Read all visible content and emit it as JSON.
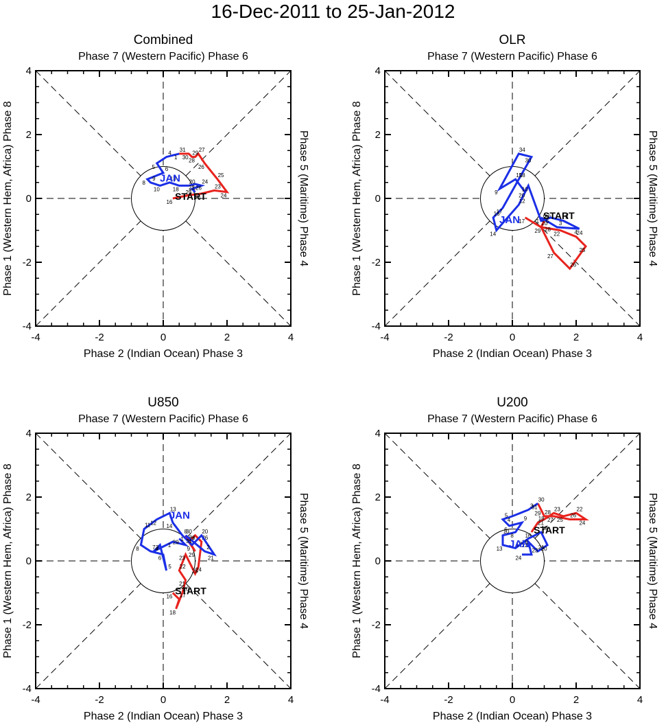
{
  "figure_title": "16-Dec-2011 to 25-Jan-2012",
  "colors": {
    "first_period": "#e8231e",
    "second_period": "#1b2fe6",
    "axis": "#000000"
  },
  "chart_data": [
    {
      "type": "line",
      "title": "Combined",
      "top_label": "Phase 7 (Western Pacific) Phase 6",
      "bottom_label": "Phase 2 (Indian Ocean) Phase 3",
      "left_label": "Phase 1 (Western Hem, Africa) Phase 8",
      "right_label": "Phase 5 (Maritime) Phase 4",
      "xlim": [
        -4,
        4
      ],
      "ylim": [
        -4,
        4
      ],
      "xticks": [
        "-4",
        "-2",
        "0",
        "2",
        "4"
      ],
      "yticks": [
        "-4",
        "-2",
        "0",
        "2",
        "4"
      ],
      "start_label": "START",
      "month_label": "JAN",
      "unit_circle_radius": 1,
      "start_point": [
        0.3,
        0.0
      ],
      "month_point": [
        0.0,
        0.7
      ],
      "series": [
        {
          "name": "December",
          "color": "#e8231e",
          "x": [
            0.3,
            0.8,
            1.2,
            1.6,
            2.0,
            1.7,
            1.3,
            1.1,
            1.0,
            0.9,
            0.8,
            0.5
          ],
          "y": [
            0.0,
            0.1,
            0.15,
            0.25,
            0.2,
            0.6,
            1.1,
            1.4,
            1.3,
            1.3,
            1.4,
            1.4
          ],
          "labels": [
            "16",
            "17",
            "21",
            "23",
            "24",
            "25",
            "26",
            "27",
            "28",
            "29",
            "30",
            "31"
          ]
        },
        {
          "name": "January",
          "color": "#1b2fe6",
          "x": [
            0.5,
            0.1,
            -0.2,
            0.0,
            -0.5,
            -0.4,
            -0.1,
            0.2,
            0.5,
            0.8,
            1.0,
            1.2,
            0.9,
            1.0
          ],
          "y": [
            1.4,
            1.3,
            1.1,
            0.8,
            0.6,
            0.5,
            0.4,
            0.5,
            0.4,
            0.4,
            0.45,
            0.4,
            0.3,
            0.2
          ],
          "labels": [
            "1",
            "4",
            "5",
            "6",
            "8",
            "9",
            "10",
            "13",
            "18",
            "20",
            "22",
            "24",
            "25",
            "26"
          ]
        }
      ]
    },
    {
      "type": "line",
      "title": "OLR",
      "top_label": "Phase 7 (Western Pacific) Phase 6",
      "bottom_label": "Phase 2 (Indian Ocean) Phase 3",
      "left_label": "Phase 1 (Western Hem, Africa) Phase 8",
      "right_label": "Phase 5 (Maritime) Phase 4",
      "xlim": [
        -4,
        4
      ],
      "ylim": [
        -4,
        4
      ],
      "xticks": [
        "-4",
        "-2",
        "0",
        "2",
        "4"
      ],
      "yticks": [
        "-4",
        "-2",
        "0",
        "2",
        "4"
      ],
      "start_label": "START",
      "month_label": "JAN",
      "unit_circle_radius": 1,
      "start_point": [
        0.9,
        -0.6
      ],
      "month_point": [
        -0.3,
        -0.6
      ],
      "series": [
        {
          "name": "December",
          "color": "#e8231e",
          "x": [
            0.4,
            0.9,
            1.5,
            2.0,
            2.3,
            1.8,
            1.3,
            1.0,
            0.9,
            1.0
          ],
          "y": [
            -0.6,
            -0.9,
            -1.0,
            -1.2,
            -1.5,
            -2.2,
            -1.7,
            -1.1,
            -0.9,
            -0.7
          ],
          "labels": [
            "17",
            "20",
            "22",
            "24",
            "25",
            "26",
            "27",
            "28",
            "29",
            "30"
          ]
        },
        {
          "name": "January",
          "color": "#1b2fe6",
          "x": [
            0.9,
            1.4,
            2.1,
            1.6,
            1.2,
            0.9,
            0.5,
            0.2,
            -0.5,
            -0.6,
            -0.3,
            0.2,
            0.6,
            0.2,
            -0.4,
            0.1,
            0.4
          ],
          "y": [
            -0.6,
            -0.9,
            -0.95,
            -0.7,
            -0.6,
            -0.7,
            0.4,
            -0.2,
            -1.0,
            -0.6,
            -0.3,
            0.6,
            1.3,
            1.4,
            0.3,
            0.6,
            0.2
          ],
          "labels": [
            "1",
            "3",
            "4",
            "5",
            "6",
            "9",
            "10",
            "12",
            "14",
            "16",
            "17",
            "18",
            "30",
            "34",
            "9",
            "15",
            "20"
          ]
        }
      ]
    },
    {
      "type": "line",
      "title": "U850",
      "top_label": "Phase 7 (Western Pacific) Phase 6",
      "bottom_label": "Phase 2 (Indian Ocean) Phase 3",
      "left_label": "Phase 1 (Western Hem, Africa) Phase 8",
      "right_label": "Phase 5 (Maritime) Phase 4",
      "xlim": [
        -4,
        4
      ],
      "ylim": [
        -4,
        4
      ],
      "xticks": [
        "-4",
        "-2",
        "0",
        "2",
        "4"
      ],
      "yticks": [
        "-4",
        "-2",
        "0",
        "2",
        "4"
      ],
      "start_label": "START",
      "month_label": "JAN",
      "unit_circle_radius": 1,
      "start_point": [
        0.3,
        -1.0
      ],
      "month_point": [
        0.3,
        1.5
      ],
      "series": [
        {
          "name": "December",
          "color": "#e8231e",
          "x": [
            0.3,
            0.5,
            0.4,
            0.6,
            0.7,
            0.5,
            0.7,
            1.0,
            1.1,
            1.2,
            1.0,
            0.8,
            1.0,
            0.7
          ],
          "y": [
            -1.0,
            -1.2,
            -1.5,
            -1.0,
            -0.6,
            -0.3,
            0.2,
            -0.4,
            -0.2,
            0.6,
            0.8,
            0.6,
            0.3,
            0.8
          ],
          "labels": [
            "16",
            "17",
            "18",
            "20",
            "21",
            "22",
            "23",
            "24",
            "25",
            "26",
            "27",
            "28",
            "29",
            "30"
          ]
        },
        {
          "name": "January",
          "color": "#1b2fe6",
          "x": [
            0.7,
            1.3,
            1.6,
            1.2,
            0.9,
            0.6,
            0.3,
            0.2,
            -0.2,
            -0.6,
            -0.7,
            -0.4,
            0.0,
            0.1,
            -0.1,
            -0.3,
            0.3,
            0.7,
            0.5
          ],
          "y": [
            0.8,
            0.3,
            0.2,
            0.8,
            0.5,
            0.8,
            1.2,
            1.5,
            1.3,
            1.0,
            0.5,
            0.3,
            0.2,
            -0.3,
            0.5,
            0.3,
            0.6,
            0.5,
            0.7
          ],
          "labels": [
            "1",
            "2",
            "21",
            "20",
            "9",
            "8",
            "14",
            "13",
            "12",
            "11",
            "8",
            "7",
            "6",
            "5",
            "4",
            "3",
            "1",
            "31",
            "29"
          ]
        }
      ]
    },
    {
      "type": "line",
      "title": "U200",
      "top_label": "Phase 7 (Western Pacific) Phase 6",
      "bottom_label": "Phase 2 (Indian Ocean) Phase 3",
      "left_label": "Phase 1 (Western Hem, Africa) Phase 8",
      "right_label": "Phase 5 (Maritime) Phase 4",
      "xlim": [
        -4,
        4
      ],
      "ylim": [
        -4,
        4
      ],
      "xticks": [
        "-4",
        "-2",
        "0",
        "2",
        "4"
      ],
      "yticks": [
        "-4",
        "-2",
        "0",
        "2",
        "4"
      ],
      "start_label": "START",
      "month_label": "JAN",
      "unit_circle_radius": 1,
      "start_point": [
        0.6,
        0.9
      ],
      "month_point": [
        0.0,
        0.6
      ],
      "series": [
        {
          "name": "December",
          "color": "#e8231e",
          "x": [
            0.6,
            0.8,
            1.0,
            1.3,
            1.6,
            2.0,
            2.3,
            1.8,
            1.3,
            1.0,
            0.9,
            0.8
          ],
          "y": [
            0.9,
            1.2,
            1.3,
            1.5,
            1.4,
            1.5,
            1.3,
            1.3,
            1.4,
            1.4,
            1.6,
            1.8
          ],
          "labels": [
            "16",
            "18",
            "21",
            "23",
            "25",
            "22",
            "24",
            "26",
            "27",
            "28",
            "29",
            "30"
          ]
        },
        {
          "name": "January",
          "color": "#1b2fe6",
          "x": [
            0.8,
            0.5,
            0.0,
            -0.3,
            -0.1,
            0.3,
            0.1,
            -0.3,
            -0.3,
            0.1,
            0.5,
            0.9,
            1.1,
            0.8,
            0.5,
            0.6,
            0.3
          ],
          "y": [
            1.8,
            1.6,
            1.4,
            1.3,
            1.1,
            1.2,
            0.9,
            0.8,
            0.5,
            0.4,
            0.7,
            0.9,
            0.5,
            0.3,
            0.6,
            0.2,
            0.2
          ],
          "labels": [
            "31",
            "3",
            "4",
            "5",
            "6",
            "9",
            "8",
            "10",
            "13",
            "17",
            "18",
            "19",
            "20",
            "21",
            "22",
            "23",
            "24"
          ]
        }
      ]
    }
  ]
}
